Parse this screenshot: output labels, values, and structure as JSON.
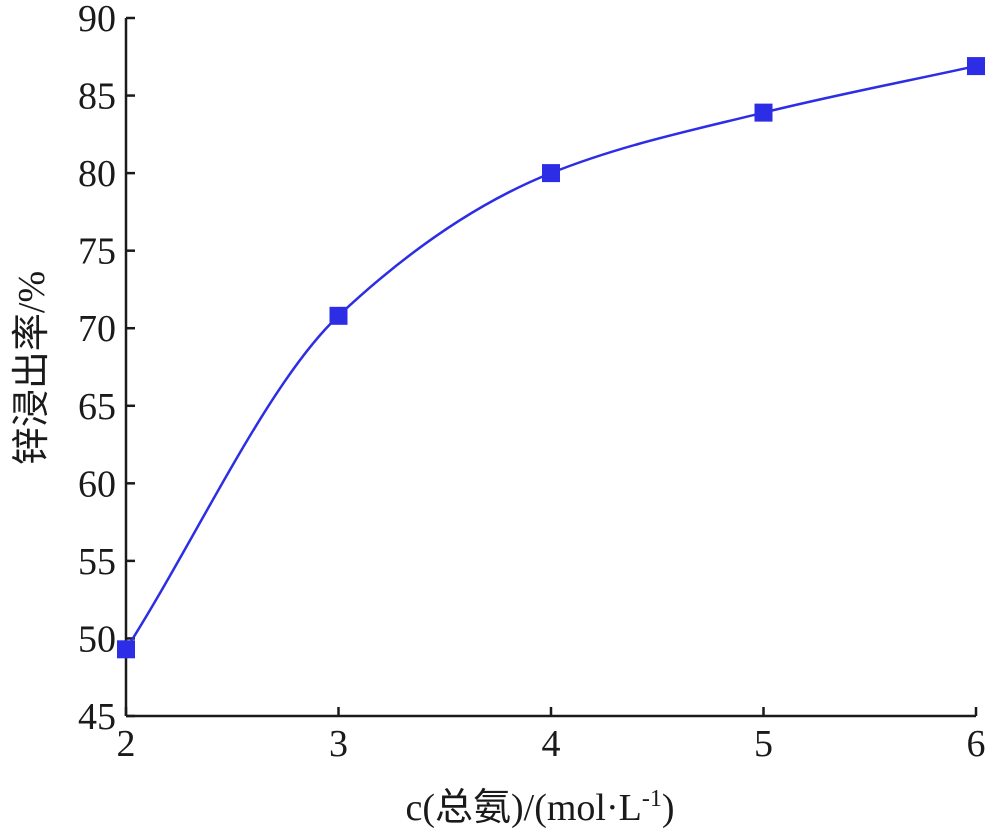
{
  "chart_data": {
    "type": "line",
    "title": "",
    "xlabel": "c(总氨)/(mol·L-1)",
    "xlabel_parts": {
      "main": "c(总氨)/(mol·L",
      "sup": "-1",
      "tail": ")"
    },
    "ylabel": "锌浸出率/%",
    "x": [
      2,
      3,
      4,
      5,
      6
    ],
    "series": [
      {
        "values": [
          49.3,
          70.8,
          80.0,
          83.9,
          86.9
        ],
        "color": "#2d2de6",
        "marker": "square"
      }
    ],
    "xlim": [
      2,
      6
    ],
    "ylim": [
      45,
      90
    ],
    "xticks": [
      "2",
      "3",
      "4",
      "5",
      "6"
    ],
    "yticks": [
      "45",
      "50",
      "55",
      "60",
      "65",
      "70",
      "75",
      "80",
      "85",
      "90"
    ],
    "grid": false,
    "smooth": true
  }
}
